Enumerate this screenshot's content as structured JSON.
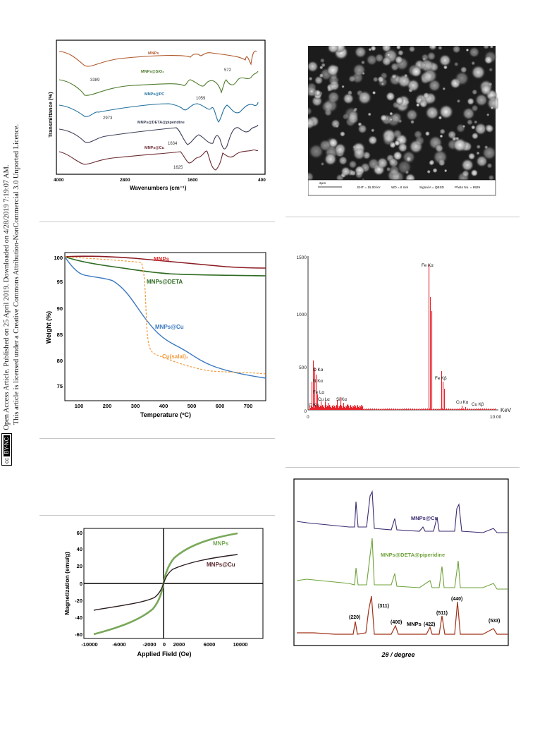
{
  "sidebar": {
    "line1": "Open Access Article. Published on 25 April 2019. Downloaded on 4/28/2019 7:19:07 AM.",
    "line2": "This article is licensed under a Creative Commons Attribution-NonCommercial 3.0 Unported Licence.",
    "badge_cc": "cc",
    "badge_bync": "BY-NC"
  },
  "ftir": {
    "ylabel": "Transmittance (%)",
    "xlabel": "Wavenumbers (cm⁻¹)",
    "ticks": [
      "4000",
      "2800",
      "1600",
      "400"
    ],
    "series": [
      "MNPs",
      "MNPs@SiO₂",
      "MNPs@PC",
      "MNPs@DETA@piperidine",
      "MNPs@Cu"
    ],
    "annotations": [
      "3389",
      "572",
      "1059",
      "2973",
      "1634",
      "1625"
    ],
    "colors": [
      "#b0582a",
      "#4d7a2b",
      "#1f6f9c",
      "#3a3f55",
      "#6b2a32"
    ]
  },
  "sem": {
    "scale": "2μm",
    "eht": "EHT = 15.00 kV",
    "wd": "WD = 6 mm",
    "signal": "Signal A = QBSD",
    "photo": "Photo No. = 9929"
  },
  "tga": {
    "ylabel": "Weight (%)",
    "xlabel": "Temperature (ºC)",
    "yticks": [
      "100",
      "95",
      "90",
      "85",
      "80",
      "75"
    ],
    "xticks": [
      "100",
      "200",
      "300",
      "400",
      "500",
      "600",
      "700"
    ],
    "labels": [
      "MNPs",
      "MNPs@DETA",
      "MNPs@Cu",
      "Cu(salal)₂"
    ],
    "colors": [
      "#e0312f",
      "#2e6b22",
      "#3a78c0",
      "#f39a3c"
    ]
  },
  "edx": {
    "yticks": [
      "1500",
      "1000",
      "500",
      "0"
    ],
    "xticks": [
      "0",
      "10.00"
    ],
    "xunit": "KeV",
    "peaks": [
      "Fe Kα",
      "O Kα",
      "N Kα",
      "Fe Lα",
      "C Kα",
      "Cu Lα",
      "Si Kα",
      "Fe Kβ",
      "Cu Kα",
      "Cu Kβ"
    ],
    "bar_color": "#e8232d"
  },
  "vsm": {
    "ylabel": "Magnetization (emu/g)",
    "xlabel": "Applied Field (Oe)",
    "yticks": [
      "60",
      "40",
      "20",
      "0",
      "-20",
      "-40",
      "-60"
    ],
    "xticks": [
      "-10000",
      "-6000",
      "-2000",
      "0",
      "2000",
      "6000",
      "10000"
    ],
    "labels": [
      "MNPs",
      "MNPs@Cu"
    ],
    "colors": [
      "#79a85a",
      "#2b1d1e"
    ]
  },
  "xrd": {
    "xlabel": "2θ / degree",
    "series": [
      "MNPs@Cu",
      "MNPs@DETA@piperidine",
      "MNPs"
    ],
    "hkl": [
      "(220)",
      "(311)",
      "(400)",
      "(422)",
      "(511)",
      "(440)",
      "(533)"
    ],
    "colors": [
      "#3b2a70",
      "#6fa23a",
      "#a03218"
    ]
  }
}
